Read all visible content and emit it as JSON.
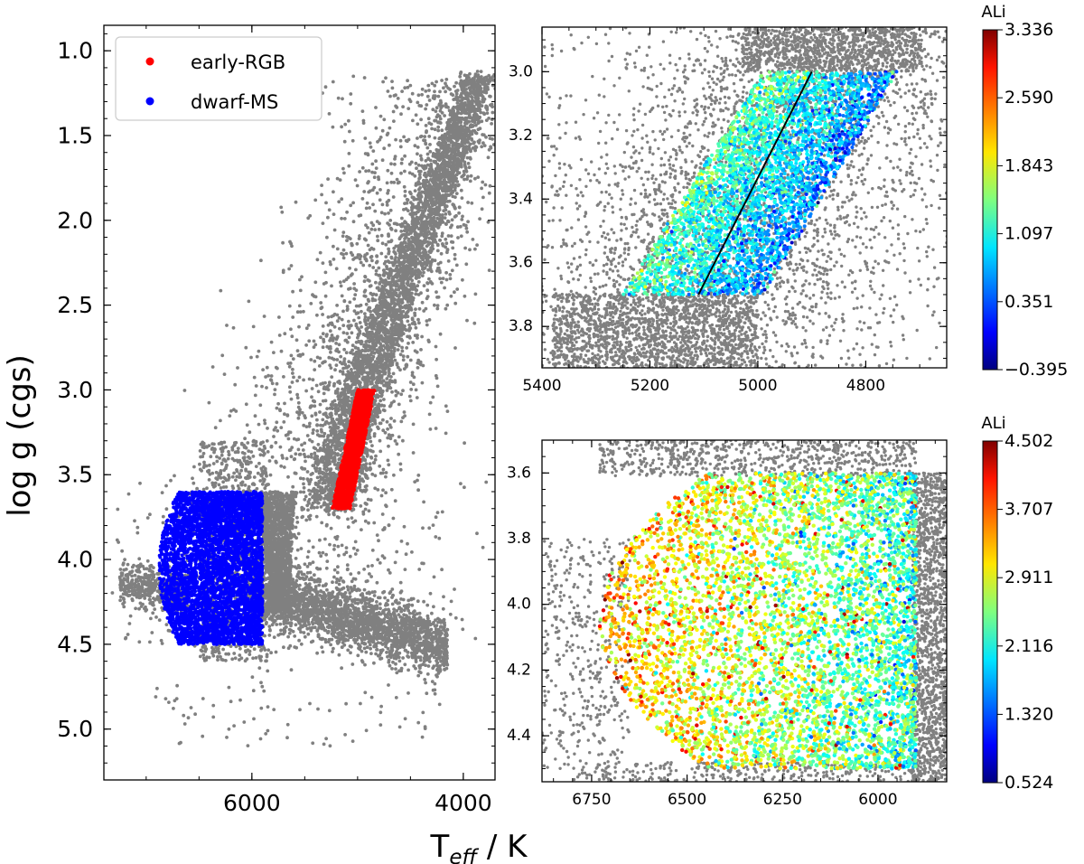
{
  "chart_data": [
    {
      "id": "main",
      "type": "scatter",
      "xlabel": "T",
      "xlabel_sub": "eff",
      "xlabel_unit": " / K",
      "ylabel": "log g (cgs)",
      "xlim": [
        7400,
        3700
      ],
      "ylim": [
        5.3,
        0.85
      ],
      "xticks": [
        6000,
        4000
      ],
      "xtick_labels": [
        "6000",
        "4000"
      ],
      "yticks": [
        1.0,
        1.5,
        2.0,
        2.5,
        3.0,
        3.5,
        4.0,
        4.5,
        5.0
      ],
      "ytick_labels": [
        "1.0",
        "1.5",
        "2.0",
        "2.5",
        "3.0",
        "3.5",
        "4.0",
        "4.5",
        "5.0"
      ],
      "legend": {
        "placement": "top-left",
        "entries": [
          {
            "label": "early-RGB",
            "color": "#ff0000"
          },
          {
            "label": "dwarf-MS",
            "color": "#0000ff"
          }
        ]
      },
      "series": [
        {
          "name": "all-stars",
          "color": "#808080",
          "description": "background sample"
        },
        {
          "name": "early-RGB",
          "color": "#ff0000",
          "teff_range": [
            4840,
            5240
          ],
          "logg_range": [
            3.0,
            3.7
          ]
        },
        {
          "name": "dwarf-MS",
          "color": "#0000ff",
          "teff_range": [
            5900,
            6900
          ],
          "logg_range": [
            3.6,
            4.5
          ]
        }
      ]
    },
    {
      "id": "top-right",
      "type": "scatter",
      "xlim": [
        5400,
        4650
      ],
      "ylim": [
        3.93,
        2.86
      ],
      "xticks": [
        5400,
        5200,
        5000,
        4800
      ],
      "xtick_labels": [
        "5400",
        "5200",
        "5000",
        "4800"
      ],
      "yticks": [
        3.0,
        3.2,
        3.4,
        3.6,
        3.8
      ],
      "ytick_labels": [
        "3.0",
        "3.2",
        "3.4",
        "3.6",
        "3.8"
      ],
      "parallelogram": {
        "top": [
          4990,
          4740
        ],
        "bottom": [
          5250,
          4990
        ],
        "logg": [
          3.0,
          3.7
        ]
      },
      "fit_line": {
        "x": [
          4900,
          5110
        ],
        "y": [
          3.0,
          3.7
        ],
        "color": "#000000"
      },
      "colorbar": {
        "title": "ALi",
        "min": -0.395,
        "max": 3.336,
        "tick_labels": [
          "3.336",
          "2.590",
          "1.843",
          "1.097",
          "0.351",
          "−0.395"
        ]
      }
    },
    {
      "id": "bottom-right",
      "type": "scatter",
      "xlim": [
        6880,
        5820
      ],
      "ylim": [
        4.54,
        3.5
      ],
      "xticks": [
        6750,
        6500,
        6250,
        6000
      ],
      "xtick_labels": [
        "6750",
        "6500",
        "6250",
        "6000"
      ],
      "yticks": [
        3.6,
        3.8,
        4.0,
        4.2,
        4.4
      ],
      "ytick_labels": [
        "3.6",
        "3.8",
        "4.0",
        "4.2",
        "4.4"
      ],
      "region": {
        "teff_range": [
          5900,
          6730
        ],
        "logg_range": [
          3.6,
          4.5
        ]
      },
      "colorbar": {
        "title": "ALi",
        "min": 0.524,
        "max": 4.502,
        "tick_labels": [
          "4.502",
          "3.707",
          "2.911",
          "2.116",
          "1.320",
          "0.524"
        ]
      }
    }
  ],
  "colors": {
    "background_points": "#808080",
    "axis": "#000000"
  }
}
